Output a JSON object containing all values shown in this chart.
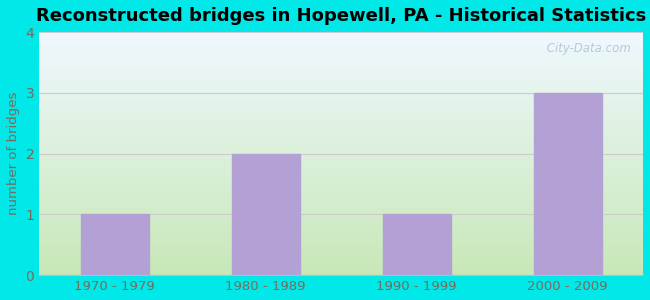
{
  "title": "Reconstructed bridges in Hopewell, PA - Historical Statistics",
  "categories": [
    "1970 - 1979",
    "1980 - 1989",
    "1990 - 1999",
    "2000 - 2009"
  ],
  "values": [
    1,
    2,
    1,
    3
  ],
  "bar_color": "#b3a0d4",
  "ylabel": "number of bridges",
  "ylim": [
    0,
    4
  ],
  "yticks": [
    0,
    1,
    2,
    3,
    4
  ],
  "background_outer": "#00e8e8",
  "grad_bottom": "#c8e8b8",
  "grad_top": "#f0f8ff",
  "title_fontsize": 13,
  "tick_color": "#7a6a5a",
  "ylabel_color": "#7a6a5a",
  "watermark": " City-Data.com",
  "grid_color": "#cccccc"
}
